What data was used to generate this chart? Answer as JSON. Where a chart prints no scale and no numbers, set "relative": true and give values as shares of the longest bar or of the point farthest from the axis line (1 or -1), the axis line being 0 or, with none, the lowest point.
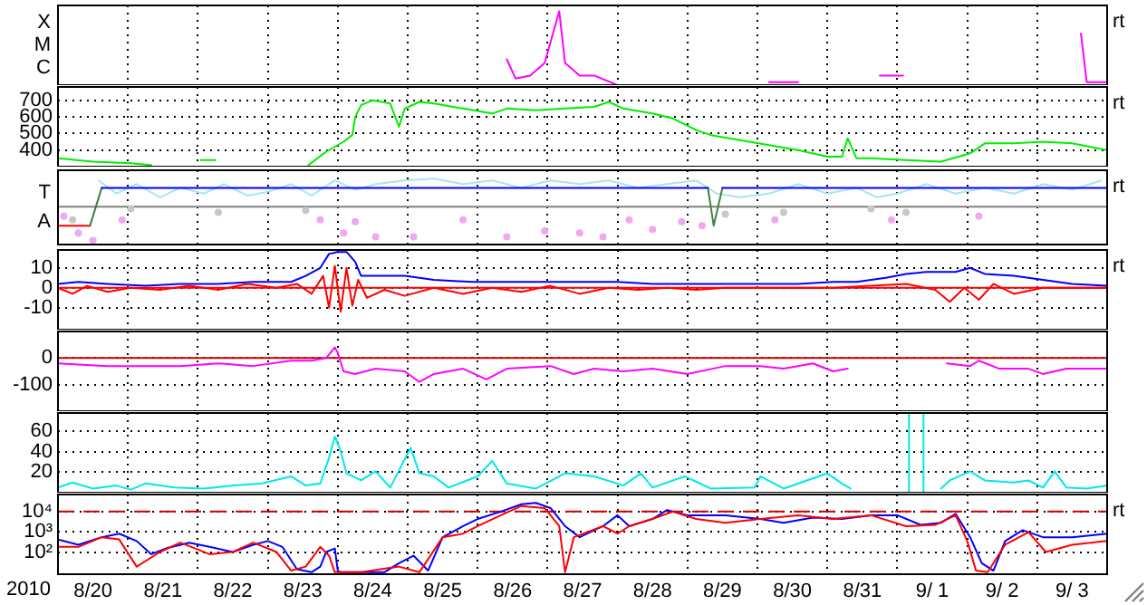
{
  "chart_data": [
    {
      "type": "line",
      "tick_labels": false,
      "grid": "x",
      "relative": true,
      "xlim": [
        "2010-08-20T00:00",
        "2010-09-04T00:00"
      ],
      "xticks": [
        {
          "value": "2010-08-21T00:00",
          "label": null
        },
        {
          "value": "2010-08-22T00:00",
          "label": null
        },
        {
          "value": "2010-08-23T00:00",
          "label": null
        },
        {
          "value": "2010-08-24T00:00",
          "label": null
        },
        {
          "value": "2010-08-25T00:00",
          "label": null
        },
        {
          "value": "2010-08-26T00:00",
          "label": null
        },
        {
          "value": "2010-08-27T00:00",
          "label": null
        },
        {
          "value": "2010-08-28T00:00",
          "label": null
        },
        {
          "value": "2010-08-29T00:00",
          "label": null
        },
        {
          "value": "2010-08-30T00:00",
          "label": null
        },
        {
          "value": "2010-08-31T00:00",
          "label": null
        },
        {
          "value": "2010-09-01T00:00",
          "label": null
        },
        {
          "value": "2010-09-02T00:00",
          "label": null
        },
        {
          "value": "2010-09-03T00:00",
          "label": null
        }
      ],
      "annotations": [
        "X",
        "M",
        "C",
        "rt"
      ],
      "series": [
        {
          "color": "#ff00ff",
          "x": [
            "2010-08-26T10:00",
            "2010-08-26T13:00",
            "2010-08-26T18:00",
            "2010-08-26T23:00",
            "2010-08-27T04:00",
            "2010-08-27T06:00",
            "2010-08-27T11:00",
            "2010-08-27T16:00",
            "2010-08-28T00:00",
            "2010-08-28T12:00",
            "2010-08-30T04:00",
            "2010-08-30T14:00",
            "2010-08-31T02:00",
            "2010-08-31T18:00",
            "2010-09-01T02:00",
            "2010-09-01T15:00",
            "2010-09-03T15:00",
            "2010-09-03T17:00",
            "2010-09-04T00:00"
          ],
          "values": [
            0.35,
            0.09,
            0.13,
            0.3,
            1,
            0.3,
            0.13,
            0.13,
            0,
            null,
            0.04,
            0.04,
            null,
            0.13,
            0.13,
            null,
            0.7,
            0.04,
            0.04
          ]
        }
      ]
    },
    {
      "type": "line",
      "tick_labels": "y",
      "grid": true,
      "xlim": [
        "2010-08-20T00:00",
        "2010-09-04T00:00"
      ],
      "xticks": [
        {
          "value": "2010-08-21T00:00",
          "label": null
        },
        {
          "value": "2010-08-22T00:00",
          "label": null
        },
        {
          "value": "2010-08-23T00:00",
          "label": null
        },
        {
          "value": "2010-08-24T00:00",
          "label": null
        },
        {
          "value": "2010-08-25T00:00",
          "label": null
        },
        {
          "value": "2010-08-26T00:00",
          "label": null
        },
        {
          "value": "2010-08-27T00:00",
          "label": null
        },
        {
          "value": "2010-08-28T00:00",
          "label": null
        },
        {
          "value": "2010-08-29T00:00",
          "label": null
        },
        {
          "value": "2010-08-30T00:00",
          "label": null
        },
        {
          "value": "2010-08-31T00:00",
          "label": null
        },
        {
          "value": "2010-09-01T00:00",
          "label": null
        },
        {
          "value": "2010-09-02T00:00",
          "label": null
        },
        {
          "value": "2010-09-03T00:00",
          "label": null
        }
      ],
      "ylim": [
        300,
        780
      ],
      "yticks": [
        400,
        500,
        600,
        700
      ],
      "annotations": [
        "rt"
      ],
      "series": [
        {
          "color": "#00ee00",
          "x": [
            "2010-08-20T00:00",
            "2010-08-20T12:00",
            "2010-08-21T01:00",
            "2010-08-21T08:00",
            "2010-08-21T16:00",
            "2010-08-22T01:00",
            "2010-08-22T06:00",
            "2010-08-22T09:00",
            "2010-08-23T14:00",
            "2010-08-23T20:00",
            "2010-08-24T02:00",
            "2010-08-24T05:00",
            "2010-08-24T06:00",
            "2010-08-24T08:00",
            "2010-08-24T12:00",
            "2010-08-24T18:00",
            "2010-08-24T21:00",
            "2010-08-24T23:00",
            "2010-08-25T04:00",
            "2010-08-25T09:00",
            "2010-08-25T19:00",
            "2010-08-26T05:00",
            "2010-08-26T10:00",
            "2010-08-26T20:00",
            "2010-08-27T06:00",
            "2010-08-27T16:00",
            "2010-08-27T21:00",
            "2010-08-28T02:00",
            "2010-08-28T12:00",
            "2010-08-28T19:00",
            "2010-08-29T03:00",
            "2010-08-29T08:00",
            "2010-08-29T18:00",
            "2010-08-30T04:00",
            "2010-08-30T14:00",
            "2010-08-31T00:00",
            "2010-08-31T05:00",
            "2010-08-31T07:00",
            "2010-08-31T10:00",
            "2010-08-31T15:00",
            "2010-09-01T03:00",
            "2010-09-01T15:00",
            "2010-09-02T01:00",
            "2010-09-02T06:00",
            "2010-09-02T16:00",
            "2010-09-03T02:00",
            "2010-09-03T12:00",
            "2010-09-04T00:00"
          ],
          "values": [
            350,
            330,
            320,
            310,
            null,
            340,
            340,
            null,
            310,
            390,
            450,
            490,
            600,
            670,
            700,
            680,
            540,
            650,
            690,
            680,
            650,
            620,
            650,
            640,
            650,
            660,
            690,
            650,
            620,
            590,
            520,
            490,
            460,
            430,
            400,
            360,
            360,
            470,
            350,
            350,
            340,
            330,
            380,
            440,
            440,
            450,
            440,
            400
          ]
        }
      ]
    },
    {
      "type": "line",
      "tick_labels": false,
      "grid": "x",
      "relative": true,
      "xlim": [
        "2010-08-20T00:00",
        "2010-09-04T00:00"
      ],
      "xticks": [
        {
          "value": "2010-08-21T00:00",
          "label": null
        },
        {
          "value": "2010-08-22T00:00",
          "label": null
        },
        {
          "value": "2010-08-23T00:00",
          "label": null
        },
        {
          "value": "2010-08-24T00:00",
          "label": null
        },
        {
          "value": "2010-08-25T00:00",
          "label": null
        },
        {
          "value": "2010-08-26T00:00",
          "label": null
        },
        {
          "value": "2010-08-27T00:00",
          "label": null
        },
        {
          "value": "2010-08-28T00:00",
          "label": null
        },
        {
          "value": "2010-08-29T00:00",
          "label": null
        },
        {
          "value": "2010-08-30T00:00",
          "label": null
        },
        {
          "value": "2010-08-31T00:00",
          "label": null
        },
        {
          "value": "2010-09-01T00:00",
          "label": null
        },
        {
          "value": "2010-09-02T00:00",
          "label": null
        },
        {
          "value": "2010-09-03T00:00",
          "label": null
        }
      ],
      "annotations": [
        "T",
        "A",
        "rt"
      ],
      "ref_lines": [
        {
          "axis": "y",
          "value": 0,
          "color": "#808080"
        }
      ],
      "series": [
        {
          "color": "#a8e4f4",
          "x": [
            "2010-08-20T14:00",
            "2010-08-20T20:00",
            "2010-08-21T03:00",
            "2010-08-21T11:00",
            "2010-08-21T18:00",
            "2010-08-22T02:00",
            "2010-08-22T09:00",
            "2010-08-22T17:00",
            "2010-08-23T00:00",
            "2010-08-23T08:00",
            "2010-08-23T15:00",
            "2010-08-23T23:00",
            "2010-08-24T06:00",
            "2010-08-24T13:00",
            "2010-08-24T23:00",
            "2010-08-25T09:00",
            "2010-08-25T19:00",
            "2010-08-26T05:00",
            "2010-08-26T15:00",
            "2010-08-27T01:00",
            "2010-08-27T11:00",
            "2010-08-27T21:00",
            "2010-08-28T07:00",
            "2010-08-28T17:00",
            "2010-08-29T03:00",
            "2010-08-29T10:00",
            "2010-08-29T18:00",
            "2010-08-30T04:00",
            "2010-08-30T14:00",
            "2010-08-31T00:00",
            "2010-08-31T10:00",
            "2010-08-31T17:00",
            "2010-09-01T00:00",
            "2010-09-01T10:00",
            "2010-09-01T20:00",
            "2010-09-02T06:00",
            "2010-09-02T16:00",
            "2010-09-03T02:00",
            "2010-09-03T12:00",
            "2010-09-03T22:00"
          ],
          "values": [
            0.78,
            0.39,
            0.67,
            0.28,
            0.56,
            0.39,
            0.67,
            0.33,
            0.44,
            0.67,
            0.33,
            0.78,
            0.5,
            0.67,
            0.78,
            0.83,
            0.67,
            0.78,
            0.56,
            0.78,
            0.67,
            0.78,
            0.56,
            0.67,
            0.78,
            0.39,
            0.28,
            0.39,
            0.67,
            0.39,
            0.56,
            0.28,
            0.39,
            0.67,
            0.39,
            0.56,
            0.39,
            0.67,
            0.5,
            0.78
          ]
        },
        {
          "type": "scatter",
          "color": "#f0a8f0",
          "x": [
            "2010-08-20T02:00",
            "2010-08-20T07:00",
            "2010-08-20T12:00",
            "2010-08-20T22:00",
            "2010-08-23T18:00",
            "2010-08-24T02:00",
            "2010-08-24T06:00",
            "2010-08-24T13:00",
            "2010-08-25T02:00",
            "2010-08-25T19:00",
            "2010-08-26T10:00",
            "2010-08-26T23:00",
            "2010-08-27T11:00",
            "2010-08-27T19:00",
            "2010-08-28T04:00",
            "2010-08-28T12:00",
            "2010-08-28T22:00",
            "2010-08-29T05:00",
            "2010-08-30T06:00",
            "2010-08-31T22:00",
            "2010-09-02T04:00"
          ],
          "values": [
            -0.28,
            -0.78,
            -1,
            -0.39,
            -0.39,
            -0.78,
            -0.44,
            -0.89,
            -0.89,
            -0.39,
            -0.89,
            -0.72,
            -0.78,
            -0.89,
            -0.39,
            -0.67,
            -0.44,
            -0.56,
            -0.39,
            -0.39,
            -0.28
          ]
        },
        {
          "type": "scatter",
          "color": "#c8c8c8",
          "x": [
            "2010-08-20T05:00",
            "2010-08-21T01:00",
            "2010-08-22T07:00",
            "2010-08-23T13:00",
            "2010-08-29T13:00",
            "2010-08-30T09:00",
            "2010-08-31T15:00",
            "2010-09-01T03:00"
          ],
          "values": [
            -0.39,
            -0.06,
            -0.17,
            -0.11,
            -0.22,
            -0.17,
            -0.06,
            -0.17
          ]
        },
        {
          "color": "#ff0000",
          "x": [
            "2010-08-20T00:00",
            "2010-08-20T11:00"
          ],
          "values": [
            -0.56,
            -0.56
          ]
        },
        {
          "color": "#408040",
          "x": [
            "2010-08-20T11:00",
            "2010-08-20T15:00",
            "2010-08-29T05:00",
            "2010-08-29T07:00",
            "2010-08-29T09:00",
            "2010-08-29T12:00"
          ],
          "values": [
            -0.56,
            0.56,
            null,
            0.56,
            -0.56,
            0.56
          ]
        },
        {
          "color": "#0000ff",
          "x": [
            "2010-08-20T15:00",
            "2010-08-29T07:00",
            "2010-08-29T09:00",
            "2010-08-29T12:00",
            "2010-09-04T00:00"
          ],
          "values": [
            0.56,
            0.56,
            null,
            0.56,
            0.56
          ]
        }
      ]
    },
    {
      "type": "line",
      "tick_labels": "y",
      "grid": true,
      "xlim": [
        "2010-08-20T00:00",
        "2010-09-04T00:00"
      ],
      "xticks": [
        {
          "value": "2010-08-21T00:00",
          "label": null
        },
        {
          "value": "2010-08-22T00:00",
          "label": null
        },
        {
          "value": "2010-08-23T00:00",
          "label": null
        },
        {
          "value": "2010-08-24T00:00",
          "label": null
        },
        {
          "value": "2010-08-25T00:00",
          "label": null
        },
        {
          "value": "2010-08-26T00:00",
          "label": null
        },
        {
          "value": "2010-08-27T00:00",
          "label": null
        },
        {
          "value": "2010-08-28T00:00",
          "label": null
        },
        {
          "value": "2010-08-29T00:00",
          "label": null
        },
        {
          "value": "2010-08-30T00:00",
          "label": null
        },
        {
          "value": "2010-08-31T00:00",
          "label": null
        },
        {
          "value": "2010-09-01T00:00",
          "label": null
        },
        {
          "value": "2010-09-02T00:00",
          "label": null
        },
        {
          "value": "2010-09-03T00:00",
          "label": null
        }
      ],
      "ylim": [
        -21,
        19
      ],
      "yticks": [
        -10,
        0,
        10
      ],
      "annotations": [
        "rt"
      ],
      "ref_lines": [
        {
          "axis": "y",
          "value": 0,
          "color": "#ff0000"
        }
      ],
      "series": [
        {
          "color": "#0000ff",
          "x": [
            "2010-08-20T00:00",
            "2010-08-20T07:00",
            "2010-08-20T17:00",
            "2010-08-21T06:00",
            "2010-08-21T18:00",
            "2010-08-22T07:00",
            "2010-08-22T19:00",
            "2010-08-23T08:00",
            "2010-08-23T13:00",
            "2010-08-23T18:00",
            "2010-08-23T21:00",
            "2010-08-24T00:00",
            "2010-08-24T03:00",
            "2010-08-24T06:00",
            "2010-08-24T08:00",
            "2010-08-24T13:00",
            "2010-08-24T23:00",
            "2010-08-25T09:00",
            "2010-08-25T22:00",
            "2010-08-26T10:00",
            "2010-08-26T23:00",
            "2010-08-27T11:00",
            "2010-08-28T00:00",
            "2010-08-28T12:00",
            "2010-08-29T00:00",
            "2010-08-29T13:00",
            "2010-08-30T01:00",
            "2010-08-30T14:00",
            "2010-08-31T02:00",
            "2010-08-31T10:00",
            "2010-08-31T20:00",
            "2010-09-01T03:00",
            "2010-09-01T10:00",
            "2010-09-01T20:00",
            "2010-09-02T01:00",
            "2010-09-02T06:00",
            "2010-09-02T16:00",
            "2010-09-03T02:00",
            "2010-09-03T12:00",
            "2010-09-04T00:00"
          ],
          "values": [
            2,
            3,
            2,
            1,
            2,
            2,
            3,
            3,
            6,
            10,
            17,
            18,
            18,
            13,
            6,
            6,
            6,
            4,
            3,
            3,
            3,
            3,
            3,
            2,
            2,
            2,
            2,
            2,
            3,
            3,
            5,
            7,
            8,
            8,
            10,
            7,
            6,
            4,
            2,
            1
          ]
        },
        {
          "color": "#ff0000",
          "x": [
            "2010-08-20T00:00",
            "2010-08-20T05:00",
            "2010-08-20T10:00",
            "2010-08-20T17:00",
            "2010-08-21T01:00",
            "2010-08-21T11:00",
            "2010-08-21T21:00",
            "2010-08-22T07:00",
            "2010-08-22T17:00",
            "2010-08-23T03:00",
            "2010-08-23T10:00",
            "2010-08-23T15:00",
            "2010-08-23T19:00",
            "2010-08-23T21:00",
            "2010-08-23T23:00",
            "2010-08-24T01:00",
            "2010-08-24T03:00",
            "2010-08-24T05:00",
            "2010-08-24T07:00",
            "2010-08-24T10:00",
            "2010-08-24T16:00",
            "2010-08-24T23:00",
            "2010-08-25T09:00",
            "2010-08-25T19:00",
            "2010-08-26T05:00",
            "2010-08-26T15:00",
            "2010-08-27T01:00",
            "2010-08-27T11:00",
            "2010-08-27T21:00",
            "2010-08-28T07:00",
            "2010-08-28T17:00",
            "2010-08-29T03:00",
            "2010-08-29T13:00",
            "2010-08-30T01:00",
            "2010-08-30T14:00",
            "2010-08-31T02:00",
            "2010-08-31T15:00",
            "2010-09-01T03:00",
            "2010-09-01T13:00",
            "2010-09-01T18:00",
            "2010-09-01T23:00",
            "2010-09-02T04:00",
            "2010-09-02T09:00",
            "2010-09-02T16:00",
            "2010-09-03T02:00",
            "2010-09-03T12:00",
            "2010-09-04T00:00"
          ],
          "values": [
            0,
            -3,
            1,
            -2,
            0,
            -1,
            1,
            -1,
            2,
            0,
            2,
            -3,
            6,
            -10,
            11,
            -12,
            10,
            -9,
            4,
            -5,
            -1,
            -4,
            0,
            -3,
            0,
            -2,
            1,
            -3,
            0,
            -1,
            0,
            -1,
            0,
            0,
            0,
            0,
            1,
            2,
            -1,
            -7,
            0,
            -6,
            2,
            -3,
            0,
            0,
            0
          ]
        }
      ]
    },
    {
      "type": "line",
      "tick_labels": "y",
      "grid": true,
      "xlim": [
        "2010-08-20T00:00",
        "2010-09-04T00:00"
      ],
      "xticks": [
        {
          "value": "2010-08-21T00:00",
          "label": null
        },
        {
          "value": "2010-08-22T00:00",
          "label": null
        },
        {
          "value": "2010-08-23T00:00",
          "label": null
        },
        {
          "value": "2010-08-24T00:00",
          "label": null
        },
        {
          "value": "2010-08-25T00:00",
          "label": null
        },
        {
          "value": "2010-08-26T00:00",
          "label": null
        },
        {
          "value": "2010-08-27T00:00",
          "label": null
        },
        {
          "value": "2010-08-28T00:00",
          "label": null
        },
        {
          "value": "2010-08-29T00:00",
          "label": null
        },
        {
          "value": "2010-08-30T00:00",
          "label": null
        },
        {
          "value": "2010-08-31T00:00",
          "label": null
        },
        {
          "value": "2010-09-01T00:00",
          "label": null
        },
        {
          "value": "2010-09-02T00:00",
          "label": null
        },
        {
          "value": "2010-09-03T00:00",
          "label": null
        }
      ],
      "ylim": [
        -200,
        100
      ],
      "yticks": [
        -100,
        0
      ],
      "ref_lines": [
        {
          "axis": "y",
          "value": 0,
          "color": "#cc0000"
        }
      ],
      "series": [
        {
          "color": "#ff00ff",
          "x": [
            "2010-08-20T00:00",
            "2010-08-20T17:00",
            "2010-08-21T06:00",
            "2010-08-21T18:00",
            "2010-08-22T07:00",
            "2010-08-22T19:00",
            "2010-08-23T08:00",
            "2010-08-23T15:00",
            "2010-08-23T20:00",
            "2010-08-23T23:00",
            "2010-08-24T00:00",
            "2010-08-24T02:00",
            "2010-08-24T06:00",
            "2010-08-24T13:00",
            "2010-08-24T23:00",
            "2010-08-25T04:00",
            "2010-08-25T09:00",
            "2010-08-25T19:00",
            "2010-08-26T03:00",
            "2010-08-26T10:00",
            "2010-08-27T01:00",
            "2010-08-27T09:00",
            "2010-08-27T16:00",
            "2010-08-28T02:00",
            "2010-08-28T12:00",
            "2010-08-29T00:00",
            "2010-08-29T13:00",
            "2010-08-30T01:00",
            "2010-08-30T09:00",
            "2010-08-30T19:00",
            "2010-08-31T02:00",
            "2010-08-31T07:00",
            "2010-09-01T00:00",
            "2010-09-01T17:00",
            "2010-09-02T01:00",
            "2010-09-02T04:00",
            "2010-09-02T11:00",
            "2010-09-02T21:00",
            "2010-09-03T02:00",
            "2010-09-03T10:00",
            "2010-09-04T00:00"
          ],
          "values": [
            -20,
            -30,
            -30,
            -30,
            -20,
            -30,
            -10,
            -10,
            0,
            40,
            20,
            -50,
            -60,
            -40,
            -50,
            -90,
            -60,
            -40,
            -80,
            -40,
            -30,
            -60,
            -40,
            -50,
            -40,
            -60,
            -30,
            -30,
            -40,
            -20,
            -50,
            -40,
            null,
            -20,
            -30,
            -10,
            -40,
            -40,
            -60,
            -40,
            -40
          ]
        }
      ]
    },
    {
      "type": "line",
      "tick_labels": "y",
      "grid": true,
      "xlim": [
        "2010-08-20T00:00",
        "2010-09-04T00:00"
      ],
      "xticks": [
        {
          "value": "2010-08-21T00:00",
          "label": null
        },
        {
          "value": "2010-08-22T00:00",
          "label": null
        },
        {
          "value": "2010-08-23T00:00",
          "label": null
        },
        {
          "value": "2010-08-24T00:00",
          "label": null
        },
        {
          "value": "2010-08-25T00:00",
          "label": null
        },
        {
          "value": "2010-08-26T00:00",
          "label": null
        },
        {
          "value": "2010-08-27T00:00",
          "label": null
        },
        {
          "value": "2010-08-28T00:00",
          "label": null
        },
        {
          "value": "2010-08-29T00:00",
          "label": null
        },
        {
          "value": "2010-08-30T00:00",
          "label": null
        },
        {
          "value": "2010-08-31T00:00",
          "label": null
        },
        {
          "value": "2010-09-01T00:00",
          "label": null
        },
        {
          "value": "2010-09-02T00:00",
          "label": null
        },
        {
          "value": "2010-09-03T00:00",
          "label": null
        }
      ],
      "ylim": [
        0,
        78
      ],
      "yticks": [
        20,
        40,
        60
      ],
      "ref_lines": [
        {
          "axis": "x",
          "value": "2010-09-01T04:00",
          "color": "#00e8e8"
        },
        {
          "axis": "x",
          "value": "2010-09-01T09:00",
          "color": "#00e8e8"
        }
      ],
      "series": [
        {
          "color": "#00e8e8",
          "x": [
            "2010-08-20T00:00",
            "2010-08-20T05:00",
            "2010-08-20T12:00",
            "2010-08-20T20:00",
            "2010-08-21T01:00",
            "2010-08-21T06:00",
            "2010-08-21T16:00",
            "2010-08-22T02:00",
            "2010-08-22T12:00",
            "2010-08-22T22:00",
            "2010-08-23T08:00",
            "2010-08-23T13:00",
            "2010-08-23T18:00",
            "2010-08-23T21:00",
            "2010-08-23T23:00",
            "2010-08-24T01:00",
            "2010-08-24T03:00",
            "2010-08-24T08:00",
            "2010-08-24T13:00",
            "2010-08-24T18:00",
            "2010-08-25T01:00",
            "2010-08-25T04:00",
            "2010-08-25T09:00",
            "2010-08-25T14:00",
            "2010-08-26T00:00",
            "2010-08-26T05:00",
            "2010-08-26T10:00",
            "2010-08-26T20:00",
            "2010-08-27T06:00",
            "2010-08-27T16:00",
            "2010-08-28T02:00",
            "2010-08-28T08:00",
            "2010-08-28T12:00",
            "2010-08-28T23:00",
            "2010-08-29T08:00",
            "2010-08-29T23:00",
            "2010-08-30T01:00",
            "2010-08-30T09:00",
            "2010-08-31T00:00",
            "2010-08-31T05:00",
            "2010-08-31T08:00",
            "2010-09-01T00:00",
            "2010-09-01T15:00",
            "2010-09-01T18:00",
            "2010-09-02T01:00",
            "2010-09-02T06:00",
            "2010-09-02T16:00",
            "2010-09-02T21:00",
            "2010-09-03T02:00",
            "2010-09-03T06:00",
            "2010-09-03T10:00",
            "2010-09-03T17:00",
            "2010-09-04T00:00"
          ],
          "values": [
            5,
            10,
            4,
            7,
            3,
            9,
            5,
            4,
            7,
            9,
            16,
            7,
            9,
            34,
            55,
            41,
            19,
            12,
            21,
            5,
            44,
            19,
            16,
            5,
            16,
            31,
            9,
            4,
            19,
            16,
            7,
            19,
            5,
            16,
            4,
            5,
            16,
            4,
            19,
            9,
            4,
            null,
            4,
            12,
            21,
            12,
            10,
            12,
            5,
            21,
            5,
            4,
            7
          ]
        }
      ]
    },
    {
      "type": "line",
      "grid": true,
      "log": true,
      "xlabel": "2010",
      "xlim": [
        "2010-08-20T00:00",
        "2010-09-04T00:00"
      ],
      "xticks": [
        {
          "value": "2010-08-20T12:00",
          "label": "8/20"
        },
        {
          "value": "2010-08-21T00:00",
          "label": null
        },
        {
          "value": "2010-08-21T12:00",
          "label": "8/21"
        },
        {
          "value": "2010-08-22T00:00",
          "label": null
        },
        {
          "value": "2010-08-22T12:00",
          "label": "8/22"
        },
        {
          "value": "2010-08-23T00:00",
          "label": null
        },
        {
          "value": "2010-08-23T12:00",
          "label": "8/23"
        },
        {
          "value": "2010-08-24T00:00",
          "label": null
        },
        {
          "value": "2010-08-24T12:00",
          "label": "8/24"
        },
        {
          "value": "2010-08-25T00:00",
          "label": null
        },
        {
          "value": "2010-08-25T12:00",
          "label": "8/25"
        },
        {
          "value": "2010-08-26T00:00",
          "label": null
        },
        {
          "value": "2010-08-26T12:00",
          "label": "8/26"
        },
        {
          "value": "2010-08-27T00:00",
          "label": null
        },
        {
          "value": "2010-08-27T12:00",
          "label": "8/27"
        },
        {
          "value": "2010-08-28T00:00",
          "label": null
        },
        {
          "value": "2010-08-28T12:00",
          "label": "8/28"
        },
        {
          "value": "2010-08-29T00:00",
          "label": null
        },
        {
          "value": "2010-08-29T12:00",
          "label": "8/29"
        },
        {
          "value": "2010-08-30T00:00",
          "label": null
        },
        {
          "value": "2010-08-30T12:00",
          "label": "8/30"
        },
        {
          "value": "2010-08-31T00:00",
          "label": null
        },
        {
          "value": "2010-08-31T12:00",
          "label": "8/31"
        },
        {
          "value": "2010-09-01T00:00",
          "label": null
        },
        {
          "value": "2010-09-01T12:00",
          "label": "9/ 1"
        },
        {
          "value": "2010-09-02T00:00",
          "label": null
        },
        {
          "value": "2010-09-02T12:00",
          "label": "9/ 2"
        },
        {
          "value": "2010-09-03T00:00",
          "label": null
        },
        {
          "value": "2010-09-03T12:00",
          "label": "9/ 3"
        }
      ],
      "ylim": [
        8,
        70000
      ],
      "yticks": [
        {
          "value": 100,
          "label": "10²"
        },
        {
          "value": 1000,
          "label": "10³"
        },
        {
          "value": 10000,
          "label": "10⁴"
        }
      ],
      "annotations": [
        "rt"
      ],
      "ref_lines": [
        {
          "axis": "y",
          "value": 10000,
          "color": "#cc0000",
          "line_style": "dashed"
        }
      ],
      "series": [
        {
          "color": "#0000ff",
          "x": [
            "2010-08-20T00:00",
            "2010-08-20T07:00",
            "2010-08-20T15:00",
            "2010-08-20T21:00",
            "2010-08-21T03:00",
            "2010-08-21T08:00",
            "2010-08-21T13:00",
            "2010-08-21T21:00",
            "2010-08-22T04:00",
            "2010-08-22T12:00",
            "2010-08-22T19:00",
            "2010-08-23T00:00",
            "2010-08-23T05:00",
            "2010-08-23T10:00",
            "2010-08-23T15:00",
            "2010-08-23T18:00",
            "2010-08-23T20:00",
            "2010-08-23T23:00",
            "2010-08-24T00:00",
            "2010-08-24T01:00",
            "2010-08-24T08:00",
            "2010-08-24T16:00",
            "2010-08-24T21:00",
            "2010-08-25T02:00",
            "2010-08-25T07:00",
            "2010-08-25T12:00",
            "2010-08-25T19:00",
            "2010-08-26T00:00",
            "2010-08-26T08:00",
            "2010-08-26T15:00",
            "2010-08-26T20:00",
            "2010-08-27T01:00",
            "2010-08-27T06:00",
            "2010-08-27T11:00",
            "2010-08-27T19:00",
            "2010-08-28T00:00",
            "2010-08-28T04:00",
            "2010-08-28T12:00",
            "2010-08-28T17:00",
            "2010-08-29T00:00",
            "2010-08-29T13:00",
            "2010-08-30T01:00",
            "2010-08-30T09:00",
            "2010-08-30T19:00",
            "2010-08-31T05:00",
            "2010-08-31T15:00",
            "2010-09-01T00:00",
            "2010-09-01T08:00",
            "2010-09-01T15:00",
            "2010-09-01T20:00",
            "2010-09-02T01:00",
            "2010-09-02T05:00",
            "2010-09-02T09:00",
            "2010-09-02T13:00",
            "2010-09-02T19:00",
            "2010-09-03T02:00",
            "2010-09-03T12:00",
            "2010-09-04T00:00"
          ],
          "values": [
            420,
            230,
            540,
            810,
            350,
            78,
            150,
            290,
            180,
            100,
            230,
            350,
            180,
            14,
            10,
            19,
            100,
            150,
            12,
            10,
            10,
            10,
            28,
            66,
            12,
            540,
            1900,
            4300,
            10000,
            23000,
            27000,
            15000,
            1900,
            540,
            1900,
            6600,
            1900,
            4300,
            12000,
            6600,
            6600,
            4300,
            2800,
            5100,
            4300,
            6600,
            6600,
            2200,
            2800,
            7800,
            540,
            28,
            12,
            350,
            1200,
            540,
            540,
            810
          ]
        },
        {
          "color": "#ff0000",
          "x": [
            "2010-08-20T00:00",
            "2010-08-20T07:00",
            "2010-08-20T15:00",
            "2010-08-20T21:00",
            "2010-08-21T03:00",
            "2010-08-21T11:00",
            "2010-08-21T18:00",
            "2010-08-22T04:00",
            "2010-08-22T12:00",
            "2010-08-22T19:00",
            "2010-08-23T03:00",
            "2010-08-23T08:00",
            "2010-08-23T13:00",
            "2010-08-23T18:00",
            "2010-08-23T21:00",
            "2010-08-23T23:00",
            "2010-08-24T08:00",
            "2010-08-24T21:00",
            "2010-08-25T04:00",
            "2010-08-25T12:00",
            "2010-08-25T19:00",
            "2010-08-26T00:00",
            "2010-08-26T08:00",
            "2010-08-26T15:00",
            "2010-08-26T23:00",
            "2010-08-27T04:00",
            "2010-08-27T06:00",
            "2010-08-27T09:00",
            "2010-08-27T19:00",
            "2010-08-28T00:00",
            "2010-08-28T04:00",
            "2010-08-28T12:00",
            "2010-08-28T19:00",
            "2010-08-29T03:00",
            "2010-08-29T13:00",
            "2010-08-30T01:00",
            "2010-08-30T14:00",
            "2010-08-31T02:00",
            "2010-08-31T15:00",
            "2010-09-01T03:00",
            "2010-09-01T13:00",
            "2010-09-01T20:00",
            "2010-09-02T00:00",
            "2010-09-02T03:00",
            "2010-09-02T07:00",
            "2010-09-02T13:00",
            "2010-09-02T21:00",
            "2010-09-03T03:00",
            "2010-09-03T12:00",
            "2010-09-04T00:00"
          ],
          "values": [
            180,
            180,
            540,
            420,
            19,
            100,
            290,
            78,
            100,
            290,
            100,
            12,
            19,
            180,
            66,
            10,
            10,
            19,
            10,
            540,
            810,
            1900,
            6600,
            19000,
            15000,
            1900,
            10,
            540,
            1900,
            810,
            1900,
            4300,
            10000,
            4300,
            2800,
            4300,
            6600,
            4300,
            6600,
            1900,
            2200,
            6600,
            350,
            12,
            10,
            230,
            960,
            100,
            230,
            350
          ]
        }
      ]
    }
  ]
}
